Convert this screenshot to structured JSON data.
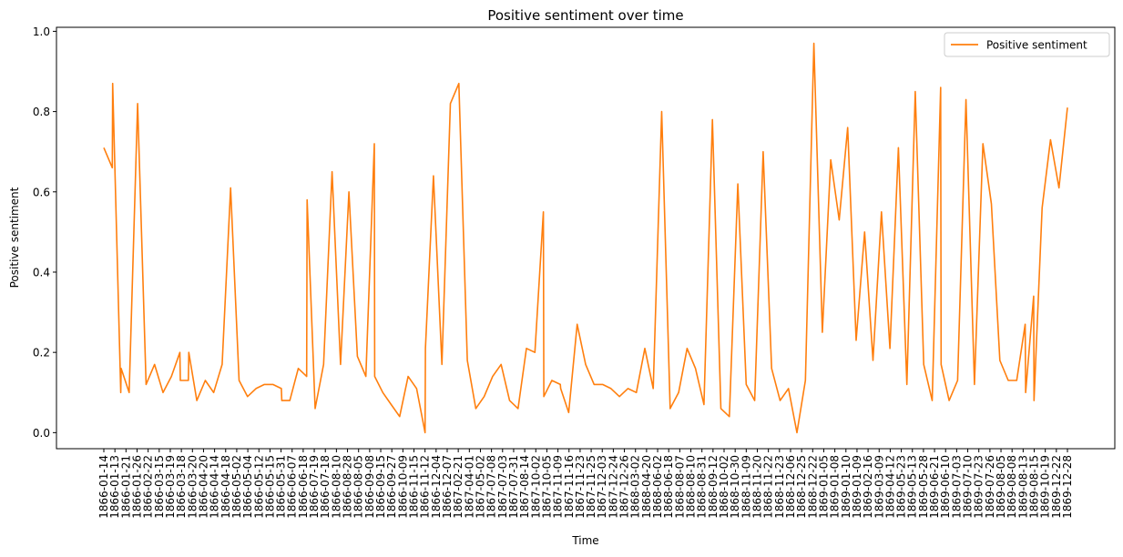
{
  "chart_data": {
    "type": "line",
    "title": "Positive sentiment over time",
    "xlabel": "Time",
    "ylabel": "Positive sentiment",
    "ylim": [
      -0.04,
      1.01
    ],
    "yticks": [
      0.0,
      0.2,
      0.4,
      0.6,
      0.8,
      1.0
    ],
    "ytick_labels": [
      "0.0",
      "0.2",
      "0.4",
      "0.6",
      "0.8",
      "1.0"
    ],
    "xtick_labels": [
      "1866-01-14",
      "1866-01-13",
      "1866-01-21",
      "1866-01-26",
      "1866-02-22",
      "1866-03-15",
      "1866-03-19",
      "1866-03-18",
      "1866-03-20",
      "1866-04-20",
      "1866-04-14",
      "1866-04-18",
      "1866-05-02",
      "1866-05-04",
      "1866-05-12",
      "1866-05-15",
      "1866-05-31",
      "1866-06-07",
      "1866-06-18",
      "1866-07-19",
      "1866-07-18",
      "1866-08-10",
      "1866-08-28",
      "1866-08-05",
      "1866-09-08",
      "1866-09-15",
      "1866-09-27",
      "1866-10-09",
      "1866-11-15",
      "1866-11-12",
      "1866-12-04",
      "1866-12-07",
      "1867-02-21",
      "1867-04-01",
      "1867-05-02",
      "1867-07-08",
      "1867-07-03",
      "1867-07-31",
      "1867-08-14",
      "1867-10-02",
      "1867-10-05",
      "1867-11-09",
      "1867-11-16",
      "1867-11-23",
      "1867-11-25",
      "1867-12-03",
      "1867-12-24",
      "1867-12-26",
      "1868-03-02",
      "1868-04-20",
      "1868-06-02",
      "1868-06-18",
      "1868-08-07",
      "1868-08-10",
      "1868-08-31",
      "1868-09-12",
      "1868-10-02",
      "1868-10-30",
      "1868-11-09",
      "1868-11-20",
      "1868-11-22",
      "1868-11-23",
      "1868-12-06",
      "1868-12-25",
      "1868-12-22",
      "1869-01-05",
      "1869-01-08",
      "1869-01-10",
      "1869-01-09",
      "1869-02-16",
      "1869-03-09",
      "1869-04-12",
      "1869-05-23",
      "1869-05-13",
      "1869-05-28",
      "1869-06-21",
      "1869-06-10",
      "1869-07-03",
      "1869-07-10",
      "1869-07-23",
      "1869-07-26",
      "1869-08-05",
      "1869-08-08",
      "1869-08-13",
      "1869-08-15",
      "1869-10-19",
      "1869-12-22",
      "1869-12-28"
    ],
    "series": [
      {
        "name": "Positive sentiment",
        "color": "#ff7f0e",
        "points": [
          [
            0,
            0.71
          ],
          [
            1,
            0.66
          ],
          [
            1.05,
            0.87
          ],
          [
            2,
            0.1
          ],
          [
            2.05,
            0.16
          ],
          [
            3,
            0.1
          ],
          [
            4,
            0.82
          ],
          [
            5,
            0.12
          ],
          [
            6,
            0.17
          ],
          [
            7,
            0.1
          ],
          [
            8,
            0.14
          ],
          [
            9,
            0.2
          ],
          [
            9.05,
            0.13
          ],
          [
            10,
            0.13
          ],
          [
            10.05,
            0.2
          ],
          [
            11,
            0.08
          ],
          [
            12,
            0.13
          ],
          [
            13,
            0.1
          ],
          [
            14,
            0.17
          ],
          [
            15,
            0.61
          ],
          [
            16,
            0.13
          ],
          [
            17,
            0.09
          ],
          [
            18,
            0.11
          ],
          [
            19,
            0.12
          ],
          [
            20,
            0.12
          ],
          [
            21,
            0.11
          ],
          [
            21.05,
            0.08
          ],
          [
            22,
            0.08
          ],
          [
            23,
            0.16
          ],
          [
            24,
            0.14
          ],
          [
            24.05,
            0.58
          ],
          [
            25,
            0.06
          ],
          [
            26,
            0.17
          ],
          [
            27,
            0.65
          ],
          [
            28,
            0.17
          ],
          [
            29,
            0.6
          ],
          [
            30,
            0.19
          ],
          [
            31,
            0.14
          ],
          [
            32,
            0.72
          ],
          [
            32.05,
            0.14
          ],
          [
            33,
            0.1
          ],
          [
            34,
            0.07
          ],
          [
            35,
            0.04
          ],
          [
            36,
            0.14
          ],
          [
            37,
            0.11
          ],
          [
            38,
            0.0
          ],
          [
            38.05,
            0.21
          ],
          [
            39,
            0.64
          ],
          [
            40,
            0.17
          ],
          [
            41,
            0.82
          ],
          [
            42,
            0.87
          ],
          [
            43,
            0.18
          ],
          [
            44,
            0.06
          ],
          [
            45,
            0.09
          ],
          [
            46,
            0.14
          ],
          [
            47,
            0.17
          ],
          [
            48,
            0.08
          ],
          [
            49,
            0.06
          ],
          [
            50,
            0.21
          ],
          [
            51,
            0.2
          ],
          [
            52,
            0.55
          ],
          [
            52.05,
            0.09
          ],
          [
            53,
            0.13
          ],
          [
            54,
            0.12
          ],
          [
            54.05,
            0.11
          ],
          [
            55,
            0.05
          ],
          [
            56,
            0.27
          ],
          [
            57,
            0.17
          ],
          [
            58,
            0.12
          ],
          [
            59,
            0.12
          ],
          [
            60,
            0.11
          ],
          [
            61,
            0.09
          ],
          [
            62,
            0.11
          ],
          [
            63,
            0.1
          ],
          [
            64,
            0.21
          ],
          [
            65,
            0.11
          ],
          [
            66,
            0.8
          ],
          [
            67,
            0.06
          ],
          [
            68,
            0.1
          ],
          [
            69,
            0.21
          ],
          [
            70,
            0.16
          ],
          [
            71,
            0.07
          ],
          [
            72,
            0.78
          ],
          [
            73,
            0.06
          ],
          [
            74,
            0.04
          ],
          [
            75,
            0.62
          ],
          [
            76,
            0.12
          ],
          [
            77,
            0.08
          ],
          [
            78,
            0.7
          ],
          [
            79,
            0.16
          ],
          [
            80,
            0.08
          ],
          [
            81,
            0.11
          ],
          [
            82,
            0.0
          ],
          [
            83,
            0.13
          ],
          [
            84,
            0.97
          ],
          [
            85,
            0.25
          ],
          [
            86,
            0.68
          ],
          [
            87,
            0.53
          ],
          [
            88,
            0.76
          ],
          [
            89,
            0.23
          ],
          [
            90,
            0.5
          ],
          [
            91,
            0.18
          ],
          [
            92,
            0.55
          ],
          [
            93,
            0.21
          ],
          [
            94,
            0.71
          ],
          [
            95,
            0.12
          ],
          [
            96,
            0.85
          ],
          [
            97,
            0.17
          ],
          [
            98,
            0.08
          ],
          [
            99,
            0.86
          ],
          [
            99.05,
            0.17
          ],
          [
            100,
            0.08
          ],
          [
            101,
            0.13
          ],
          [
            102,
            0.83
          ],
          [
            103,
            0.12
          ],
          [
            104,
            0.72
          ],
          [
            105,
            0.57
          ],
          [
            106,
            0.18
          ],
          [
            107,
            0.13
          ],
          [
            108,
            0.13
          ],
          [
            109,
            0.27
          ],
          [
            109.05,
            0.1
          ],
          [
            110,
            0.34
          ],
          [
            110.05,
            0.08
          ],
          [
            111,
            0.56
          ],
          [
            112,
            0.73
          ],
          [
            113,
            0.61
          ],
          [
            114,
            0.81
          ]
        ]
      }
    ],
    "legend_position": "top-right",
    "grid": false
  }
}
